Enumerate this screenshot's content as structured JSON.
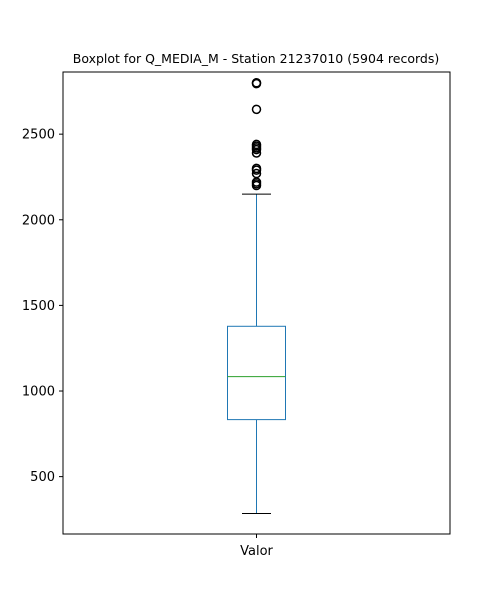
{
  "chart_data": {
    "type": "boxplot",
    "title": "Boxplot for Q_MEDIA_M - Station 21237010 (5904 records)",
    "xlabel": "",
    "ylabel": "",
    "categories": [
      "Valor"
    ],
    "ylim": [
      165,
      2863
    ],
    "yticks": [
      500,
      1000,
      1500,
      2000,
      2500
    ],
    "grid": false,
    "box": {
      "whisker_low": 285,
      "q1": 833,
      "median": 1084,
      "q3": 1378,
      "whisker_high": 2150,
      "outliers": [
        2200,
        2210,
        2220,
        2270,
        2290,
        2300,
        2390,
        2410,
        2420,
        2430,
        2440,
        2645,
        2795,
        2800
      ]
    },
    "colors": {
      "box": "#1f77b4",
      "median": "#2ca02c",
      "whisker": "#1f77b4",
      "cap": "#000000",
      "outlier": "#000000",
      "axes": "#000000"
    }
  }
}
